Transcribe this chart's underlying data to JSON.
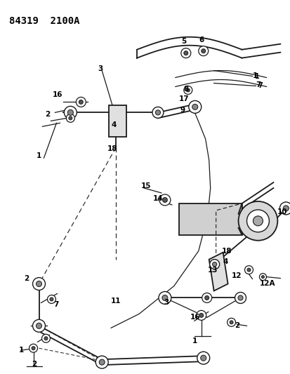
{
  "title": "84319  2100A",
  "bg_color": "#ffffff",
  "fig_width": 4.14,
  "fig_height": 5.33,
  "dpi": 100
}
